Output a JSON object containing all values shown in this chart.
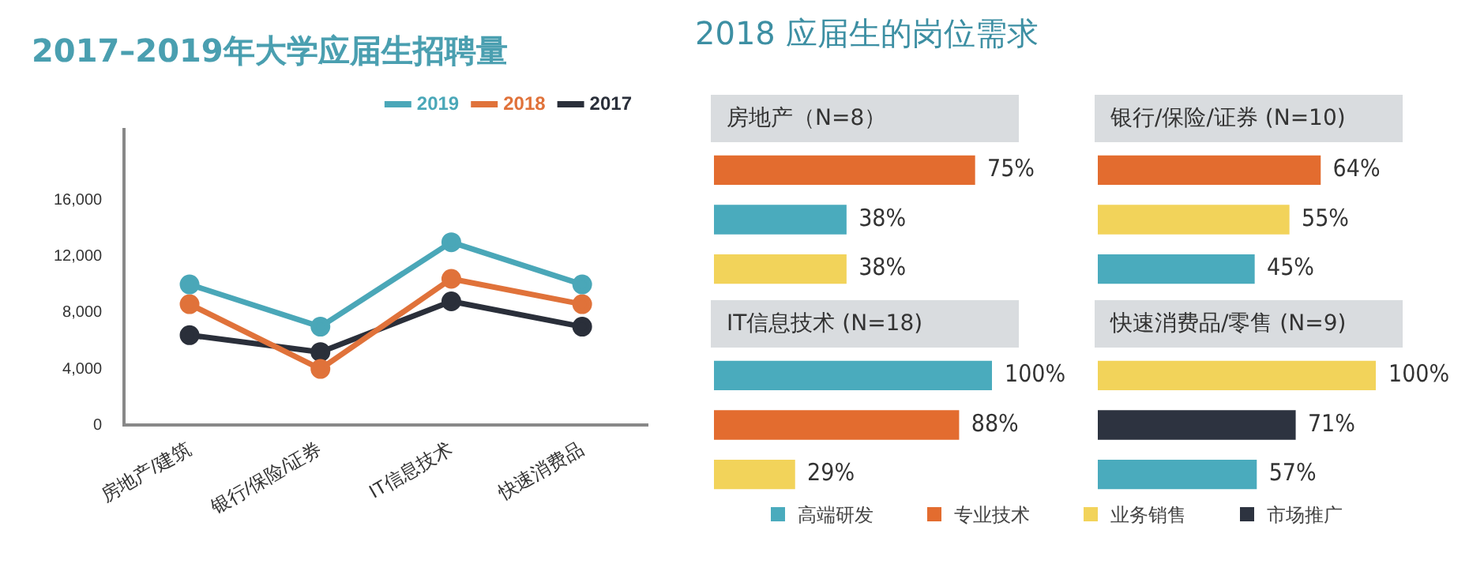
{
  "chart_data": [
    {
      "type": "line",
      "title": "2017–2019年大学应届生招聘量",
      "categories": [
        "房地产/建筑",
        "银行/保险/证券",
        "IT信息技术",
        "快速消费品"
      ],
      "series": [
        {
          "name": "2019",
          "color": "#4aa7b8",
          "values": [
            10000,
            7000,
            13000,
            10000
          ]
        },
        {
          "name": "2018",
          "color": "#e0723a",
          "values": [
            8600,
            4000,
            10400,
            8600
          ]
        },
        {
          "name": "2017",
          "color": "#2a2f3a",
          "values": [
            6400,
            5200,
            8800,
            7000
          ]
        }
      ],
      "ylim": [
        0,
        21000
      ],
      "yticks": [
        0,
        {
          "value": 4000,
          "label": "4,000"
        },
        {
          "value": 8000,
          "label": "8,000"
        },
        {
          "value": 12000,
          "label": "12,000"
        },
        {
          "value": 16000,
          "label": "16,000"
        }
      ],
      "grid": false,
      "legend": "top right",
      "marker": "circle",
      "line_style": "solid"
    },
    {
      "type": "other",
      "title": "2018 应届生的岗位需求",
      "categories": [
        "高端研发",
        "专业技术",
        "业务销售",
        "市场推广"
      ],
      "colors": [
        "#4aabbd",
        "#e36c2f",
        "#f2d35a",
        "#2d3340"
      ]
    },
    {
      "type": "bar",
      "orientation": "horizontal",
      "title": "房地产（N=8）",
      "categories": [
        null,
        null,
        null
      ],
      "values": [
        75,
        38,
        38
      ],
      "colors": [
        "#e36c2f",
        "#4aabbd",
        "#f2d35a"
      ],
      "value_labels": [
        "75%",
        "38%",
        "38%"
      ],
      "tick_labels": false,
      "grid": false,
      "legend": false
    },
    {
      "type": "bar",
      "orientation": "horizontal",
      "title": "银行/保险/证券 (N=10)",
      "categories": [
        null,
        null,
        null
      ],
      "values": [
        64,
        55,
        45
      ],
      "colors": [
        "#e36c2f",
        "#f2d35a",
        "#4aabbd"
      ],
      "value_labels": [
        "64%",
        "55%",
        "45%"
      ],
      "tick_labels": false,
      "grid": false,
      "legend": false
    },
    {
      "type": "bar",
      "orientation": "horizontal",
      "title": "IT信息技术 (N=18)",
      "categories": [
        null,
        null,
        null
      ],
      "values": [
        100,
        88,
        29
      ],
      "colors": [
        "#4aabbd",
        "#e36c2f",
        "#f2d35a"
      ],
      "value_labels": [
        "100%",
        "88%",
        "29%"
      ],
      "tick_labels": false,
      "grid": false,
      "legend": false
    },
    {
      "type": "bar",
      "orientation": "horizontal",
      "title": "快速消费品/零售 (N=9)",
      "categories": [
        null,
        null,
        null
      ],
      "values": [
        100,
        71,
        57
      ],
      "colors": [
        "#f2d35a",
        "#2d3340",
        "#4aabbd"
      ],
      "value_labels": [
        "100%",
        "71%",
        "57%"
      ],
      "tick_labels": false,
      "grid": false,
      "legend": false
    }
  ]
}
